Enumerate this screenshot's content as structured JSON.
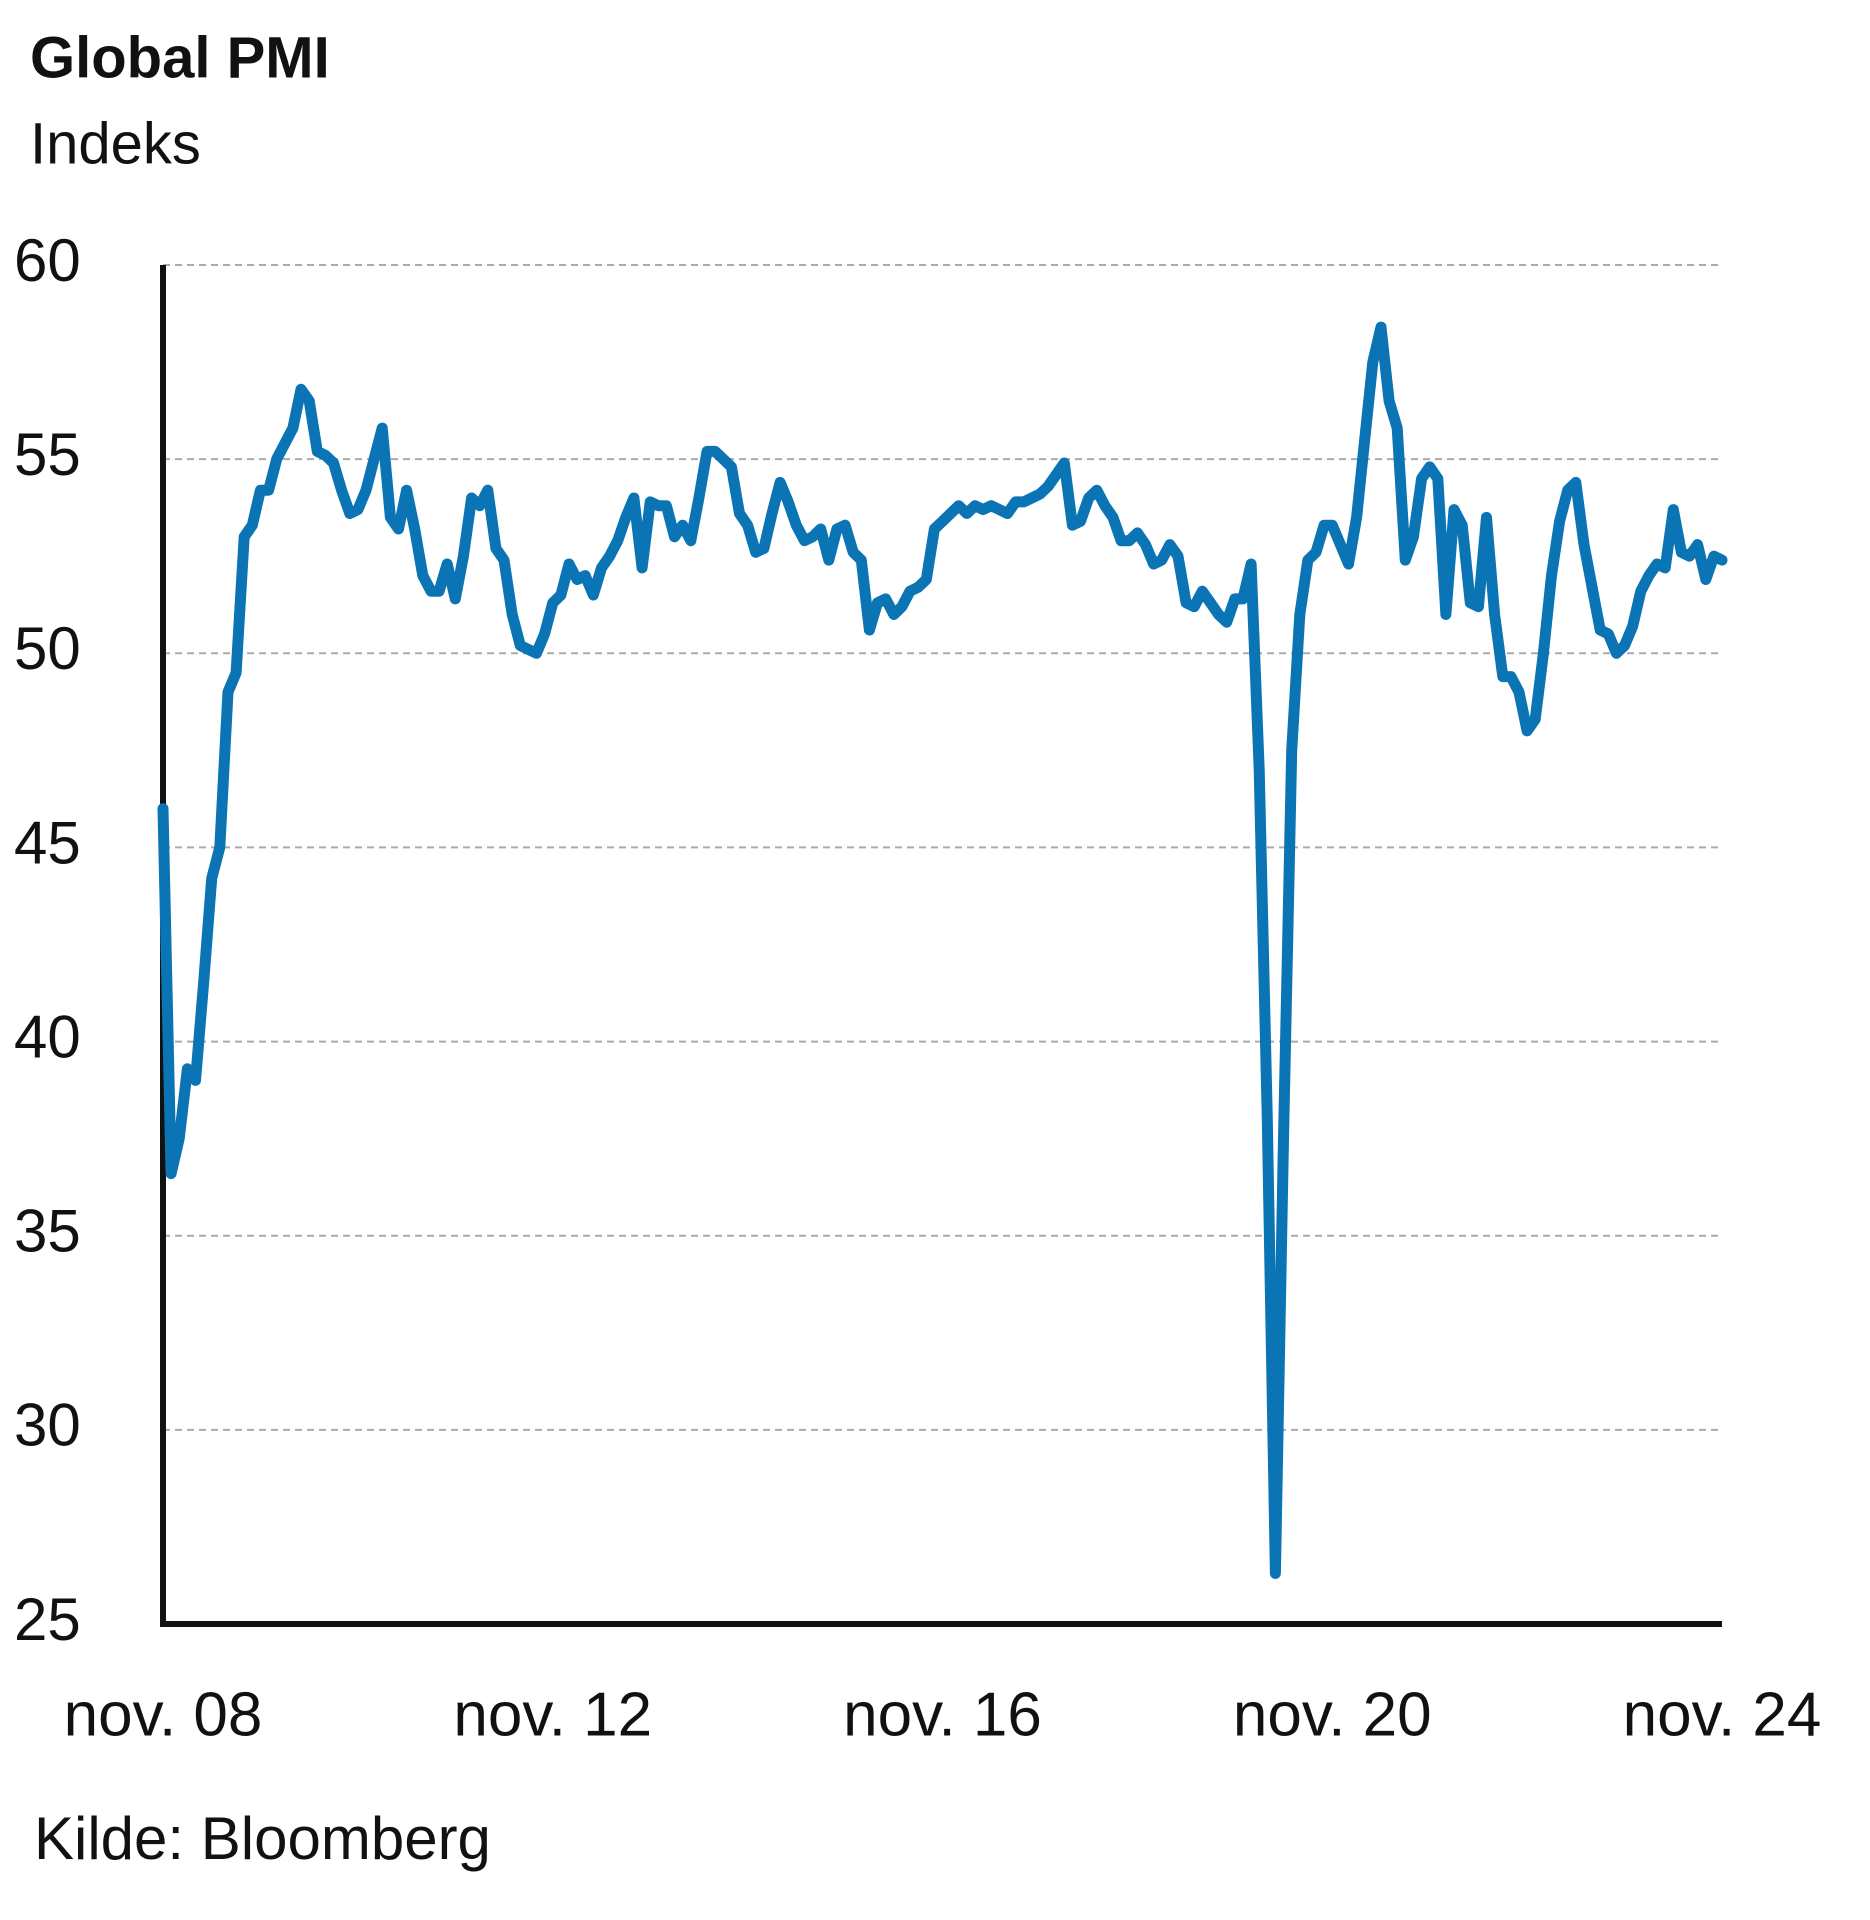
{
  "chart_data": {
    "type": "line",
    "title": "Global PMI",
    "subtitle": "Indeks",
    "source": "Kilde: Bloomberg",
    "categories": [
      "nov. 08",
      null,
      null,
      null,
      null,
      null,
      null,
      null,
      null,
      null,
      null,
      null,
      null,
      null,
      null,
      null,
      null,
      null,
      null,
      null,
      null,
      null,
      null,
      null,
      null,
      null,
      null,
      null,
      null,
      null,
      null,
      null,
      null,
      null,
      null,
      null,
      null,
      null,
      null,
      null,
      null,
      null,
      null,
      null,
      null,
      null,
      null,
      null,
      "nov. 12",
      null,
      null,
      null,
      null,
      null,
      null,
      null,
      null,
      null,
      null,
      null,
      null,
      null,
      null,
      null,
      null,
      null,
      null,
      null,
      null,
      null,
      null,
      null,
      null,
      null,
      null,
      null,
      null,
      null,
      null,
      null,
      null,
      null,
      null,
      null,
      null,
      null,
      null,
      null,
      null,
      null,
      null,
      null,
      null,
      null,
      null,
      null,
      "nov. 16",
      null,
      null,
      null,
      null,
      null,
      null,
      null,
      null,
      null,
      null,
      null,
      null,
      null,
      null,
      null,
      null,
      null,
      null,
      null,
      null,
      null,
      null,
      null,
      null,
      null,
      null,
      null,
      null,
      null,
      null,
      null,
      null,
      null,
      null,
      null,
      null,
      null,
      null,
      null,
      null,
      null,
      null,
      null,
      null,
      null,
      null,
      null,
      "nov. 20",
      null,
      null,
      null,
      null,
      null,
      null,
      null,
      null,
      null,
      null,
      null,
      null,
      null,
      null,
      null,
      null,
      null,
      null,
      null,
      null,
      null,
      null,
      null,
      null,
      null,
      null,
      null,
      null,
      null,
      null,
      null,
      null,
      null,
      null,
      null,
      null,
      null,
      null,
      null,
      null,
      null,
      null,
      null,
      null,
      null,
      null,
      null,
      "nov. 24"
    ],
    "series": [
      {
        "name": "Global PMI",
        "color": "#0a74b5",
        "values": [
          46.0,
          36.6,
          37.5,
          39.3,
          39.0,
          41.5,
          44.2,
          45.0,
          49.0,
          49.5,
          53.0,
          53.3,
          54.2,
          54.2,
          55.0,
          55.4,
          55.8,
          56.8,
          56.5,
          55.2,
          55.1,
          54.9,
          54.2,
          53.6,
          53.7,
          54.2,
          55.0,
          55.8,
          53.5,
          53.2,
          54.2,
          53.2,
          52.0,
          51.6,
          51.6,
          52.3,
          51.4,
          52.5,
          54.0,
          53.8,
          54.2,
          52.7,
          52.4,
          51.0,
          50.2,
          50.1,
          50.0,
          50.5,
          51.3,
          51.5,
          52.3,
          51.9,
          52.0,
          51.5,
          52.2,
          52.5,
          52.9,
          53.5,
          54.0,
          52.2,
          53.9,
          53.8,
          53.8,
          53.0,
          53.3,
          52.9,
          54.0,
          55.2,
          55.2,
          55.0,
          54.8,
          53.6,
          53.3,
          52.6,
          52.7,
          53.6,
          54.4,
          53.9,
          53.3,
          52.9,
          53.0,
          53.2,
          52.4,
          53.2,
          53.3,
          52.6,
          52.4,
          50.6,
          51.3,
          51.4,
          51.0,
          51.2,
          51.6,
          51.7,
          51.9,
          53.2,
          53.4,
          53.6,
          53.8,
          53.6,
          53.8,
          53.7,
          53.8,
          53.7,
          53.6,
          53.9,
          53.9,
          54.0,
          54.1,
          54.3,
          54.6,
          54.9,
          53.3,
          53.4,
          54.0,
          54.2,
          53.8,
          53.5,
          52.9,
          52.9,
          53.1,
          52.8,
          52.3,
          52.4,
          52.8,
          52.5,
          51.3,
          51.2,
          51.6,
          51.3,
          51.0,
          50.8,
          51.4,
          51.4,
          52.3,
          47.0,
          38.0,
          26.3,
          37.5,
          47.5,
          51.0,
          52.4,
          52.6,
          53.3,
          53.3,
          52.8,
          52.3,
          53.5,
          55.5,
          57.5,
          58.4,
          56.5,
          55.8,
          52.4,
          53.0,
          54.5,
          54.8,
          54.5,
          51.0,
          53.7,
          53.3,
          51.3,
          51.2,
          53.5,
          51.0,
          49.4,
          49.4,
          49.0,
          48.0,
          48.3,
          50.0,
          52.0,
          53.4,
          54.2,
          54.4,
          52.8,
          51.7,
          50.6,
          50.5,
          50.0,
          50.2,
          50.7,
          51.6,
          52.0,
          52.3,
          52.2,
          53.7,
          52.6,
          52.5,
          52.8,
          51.9,
          52.5,
          52.4
        ]
      }
    ],
    "ylim": [
      25,
      60
    ],
    "yticks": [
      25,
      30,
      35,
      40,
      45,
      50,
      55,
      60
    ],
    "grid": true
  }
}
